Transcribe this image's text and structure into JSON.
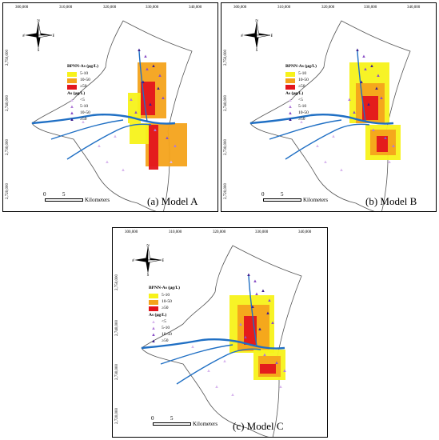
{
  "x_ticks": [
    "300,000",
    "310,000",
    "320,000",
    "330,000",
    "340,000"
  ],
  "y_ticks": [
    "2,750,000",
    "2,740,000",
    "2,730,000",
    "2,720,000"
  ],
  "compass": {
    "n": "N",
    "s": "S",
    "e": "E",
    "w": "W"
  },
  "legend": {
    "bpnn_title": "BPNN-As (μg/L)",
    "bpnn_classes": [
      {
        "label": "5-10",
        "color": "#f7f21a"
      },
      {
        "label": "10-50",
        "color": "#f4a31b"
      },
      {
        "label": "≥50",
        "color": "#e3141c"
      }
    ],
    "as_title": "As (μg/L)",
    "as_classes": [
      {
        "label": "<5",
        "color": "#d9b8ee"
      },
      {
        "label": "5-10",
        "color": "#b07ad8"
      },
      {
        "label": "10-50",
        "color": "#8a4fc6"
      },
      {
        "label": "≥50",
        "color": "#3b1d8f"
      }
    ]
  },
  "scale_bar": {
    "zero": "0",
    "five": "5",
    "unit": "Kilometers"
  },
  "panels": [
    {
      "caption": "(a) Model A"
    },
    {
      "caption": "(b) Model B"
    },
    {
      "caption": "(c) Model C"
    }
  ],
  "colors": {
    "river": "#1f6fc4",
    "land": "#ffffff",
    "outline": "#555555"
  }
}
